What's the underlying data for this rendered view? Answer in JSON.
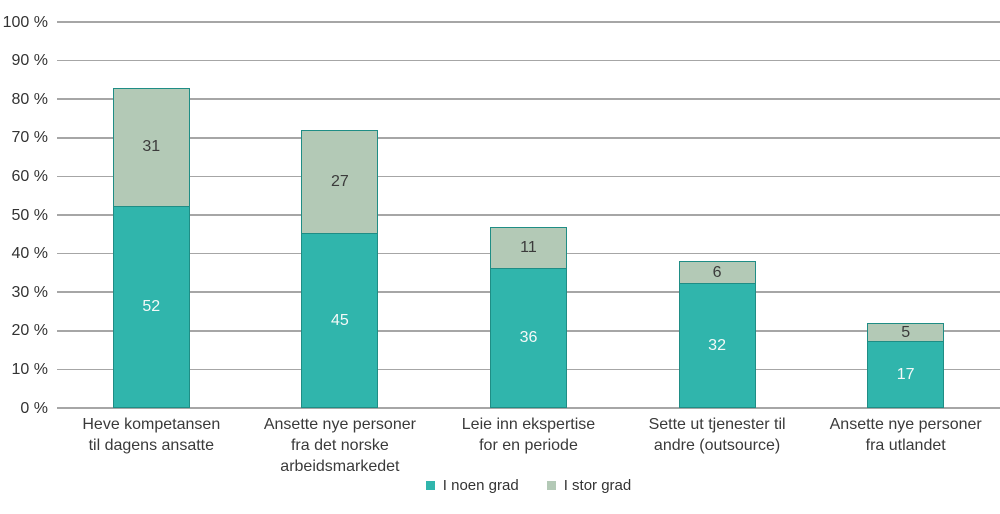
{
  "chart_data": {
    "type": "bar",
    "stacked": true,
    "title": "",
    "xlabel": "",
    "ylabel": "",
    "categories": [
      "Heve kompetansen\ntil dagens ansatte",
      "Ansette nye personer\nfra det norske\narbeidsmarkedet",
      "Leie inn ekspertise\nfor en periode",
      "Sette ut tjenester til\nandre (outsource)",
      "Ansette nye personer\nfra utlandet"
    ],
    "series": [
      {
        "name": "I noen grad",
        "values": [
          52,
          45,
          36,
          32,
          17
        ],
        "color": "#30b5ac",
        "label_color": "#f4f9f8"
      },
      {
        "name": "I stor grad",
        "values": [
          31,
          27,
          11,
          6,
          5
        ],
        "color": "#b3c9b6",
        "label_color": "#3b3b3b"
      }
    ],
    "totals": [
      83,
      72,
      47,
      38,
      22
    ],
    "y_ticks": [
      "0 %",
      "10 %",
      "20 %",
      "30 %",
      "40 %",
      "50 %",
      "60 %",
      "70 %",
      "80 %",
      "90 %",
      "100 %"
    ],
    "ylim": [
      0,
      100
    ],
    "grid": true,
    "legend_position": "bottom",
    "colors": {
      "bar_border": "#1f8d85",
      "gridline": "#a6a6a6",
      "axis_text": "#333333",
      "category_text": "#3a3a3a",
      "background": "#ffffff"
    }
  }
}
